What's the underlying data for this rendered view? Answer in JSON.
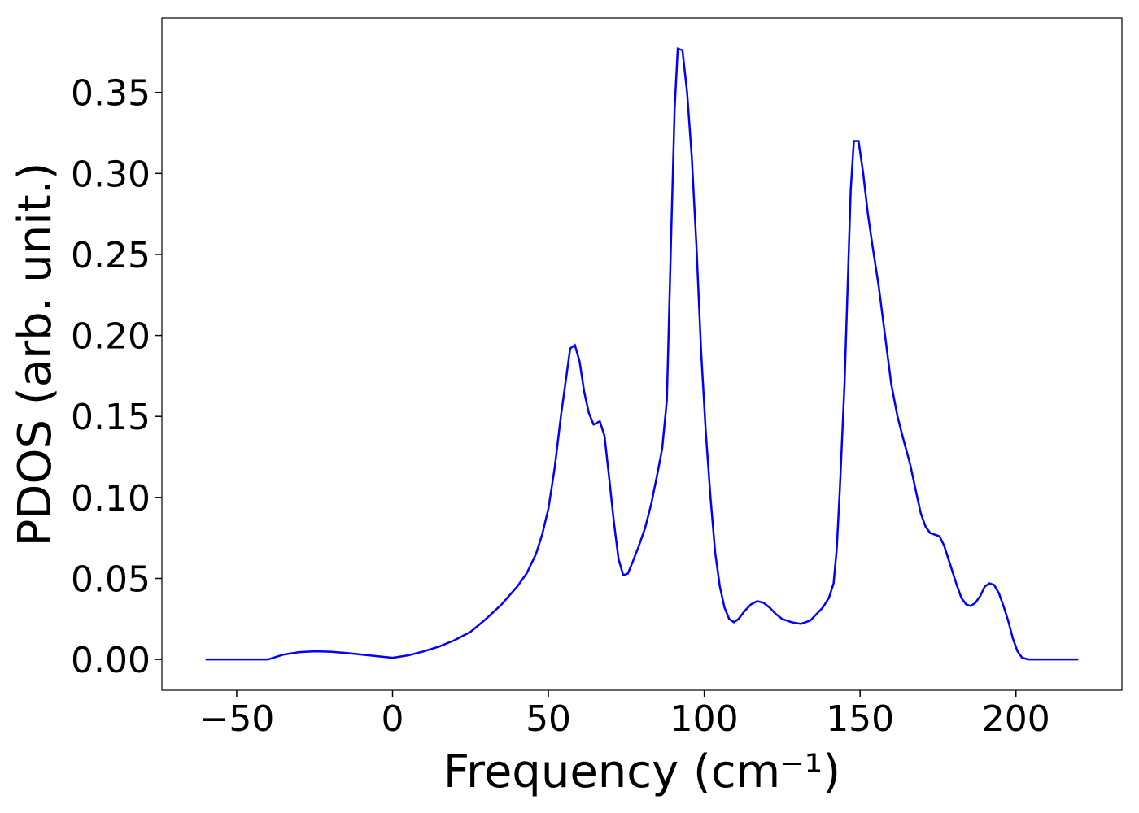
{
  "chart_data": {
    "type": "line",
    "xlabel": "Frequency (cm⁻¹)",
    "ylabel": "PDOS (arb. unit.)",
    "xlim": [
      -74,
      234
    ],
    "ylim": [
      -0.019,
      0.396
    ],
    "xticks": [
      {
        "value": -50,
        "label": "−50"
      },
      0,
      50,
      100,
      150,
      200
    ],
    "yticks": [
      {
        "value": 0,
        "label": "0.00"
      },
      {
        "value": 0.05,
        "label": "0.05"
      },
      {
        "value": 0.1,
        "label": "0.10"
      },
      {
        "value": 0.15,
        "label": "0.15"
      },
      {
        "value": 0.2,
        "label": "0.20"
      },
      {
        "value": 0.25,
        "label": "0.25"
      },
      {
        "value": 0.3,
        "label": "0.30"
      },
      {
        "value": 0.35,
        "label": "0.35"
      }
    ],
    "series": [
      {
        "color": "#0000ff",
        "x": [
          -60,
          -40,
          -35,
          -30,
          -25,
          -20,
          -15,
          -10,
          -5,
          0,
          5,
          10,
          15,
          20,
          25,
          30,
          35,
          40,
          43,
          46,
          48,
          50,
          52,
          54,
          56,
          57,
          58.5,
          60,
          61.5,
          63,
          64.5,
          66.5,
          68,
          69.5,
          71,
          72.5,
          74,
          75.5,
          77,
          79,
          81,
          83,
          85,
          86.5,
          88,
          89.5,
          90.5,
          91.5,
          93,
          94.5,
          96,
          97.5,
          99,
          100.5,
          102,
          103.5,
          105,
          106.5,
          108,
          109.5,
          111,
          113,
          115,
          117,
          119,
          121,
          123,
          125,
          128,
          131,
          134,
          136,
          138,
          140,
          141.5,
          142.5,
          143.5,
          145,
          146,
          147,
          148,
          149.5,
          151,
          152.5,
          154,
          156,
          158,
          160,
          162,
          164,
          166,
          168,
          169.5,
          171,
          172.5,
          174,
          175.5,
          177,
          179,
          181,
          182.5,
          184,
          185.5,
          187,
          188.5,
          190,
          191.5,
          193,
          194.5,
          196,
          197.5,
          199,
          200.5,
          202,
          204,
          210,
          220
        ],
        "values": [
          0,
          0,
          0.003,
          0.0045,
          0.005,
          0.0048,
          0.004,
          0.003,
          0.002,
          0.001,
          0.0025,
          0.005,
          0.008,
          0.012,
          0.017,
          0.025,
          0.034,
          0.045,
          0.053,
          0.065,
          0.077,
          0.093,
          0.118,
          0.15,
          0.178,
          0.192,
          0.194,
          0.184,
          0.165,
          0.152,
          0.145,
          0.147,
          0.138,
          0.112,
          0.085,
          0.062,
          0.052,
          0.053,
          0.06,
          0.07,
          0.081,
          0.096,
          0.115,
          0.13,
          0.16,
          0.27,
          0.34,
          0.377,
          0.376,
          0.35,
          0.31,
          0.255,
          0.19,
          0.14,
          0.1,
          0.066,
          0.045,
          0.032,
          0.025,
          0.023,
          0.025,
          0.03,
          0.034,
          0.036,
          0.035,
          0.032,
          0.028,
          0.025,
          0.023,
          0.022,
          0.024,
          0.028,
          0.032,
          0.038,
          0.047,
          0.068,
          0.105,
          0.17,
          0.23,
          0.29,
          0.32,
          0.32,
          0.3,
          0.275,
          0.255,
          0.23,
          0.2,
          0.17,
          0.15,
          0.135,
          0.121,
          0.103,
          0.09,
          0.082,
          0.078,
          0.077,
          0.076,
          0.07,
          0.058,
          0.046,
          0.038,
          0.034,
          0.033,
          0.035,
          0.039,
          0.045,
          0.047,
          0.046,
          0.041,
          0.033,
          0.024,
          0.013,
          0.005,
          0.001,
          0,
          0,
          0
        ]
      }
    ]
  }
}
